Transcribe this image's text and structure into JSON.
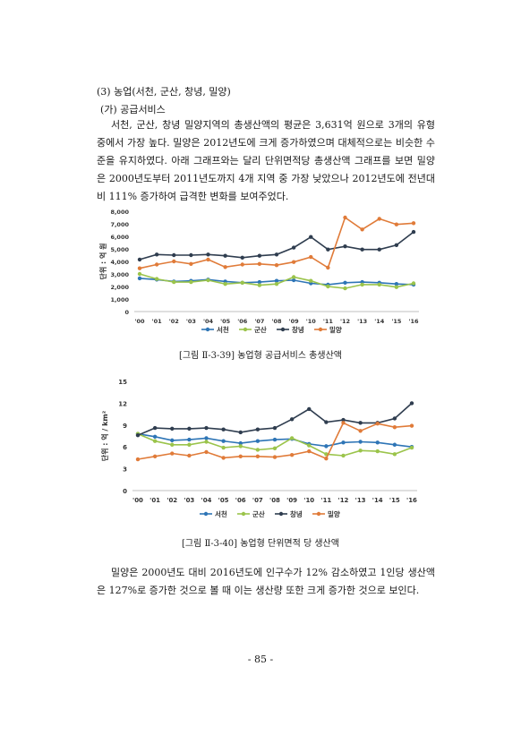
{
  "section": {
    "heading": "(3) 농업(서천, 군산, 창녕, 밀양)",
    "subheading": "(가) 공급서비스"
  },
  "paragraph1": "서천, 군산, 창녕 밀양지역의 총생산액의 평균은 3,631억 원으로 3개의 유형 중에서 가장 높다. 밀양은 2012년도에 크게 증가하였으며 대체적으로는 비슷한 수준을 유지하였다. 아래 그래프와는 달리 단위면적당 총생산액 그래프를 보면 밀양은 2000년도부터 2011년도까지 4개 지역 중 가장 낮았으나 2012년도에 전년대비 111% 증가하여 급격한 변화를 보여주었다.",
  "paragraph2": "밀양은 2000년도 대비 2016년도에 인구수가 12% 감소하였고 1인당 생산액은 127%로 증가한 것으로 볼 때 이는 생산량 또한 크게 증가한 것으로 보인다.",
  "captions": {
    "fig1": "[그림 Ⅱ-3-39] 농업형 공급서비스 총생산액",
    "fig2": "[그림 Ⅱ-3-40] 농업형 단위면적 당 생산액"
  },
  "page_number": "- 85 -",
  "chart_data": [
    {
      "type": "line",
      "title": "",
      "xlabel": "",
      "ylabel": "단위 : 억 원",
      "x": [
        "'00",
        "'01",
        "'02",
        "'03",
        "'04",
        "'05",
        "'06",
        "'07",
        "'08",
        "'09",
        "'10",
        "'11",
        "'12",
        "'13",
        "'14",
        "'15",
        "'16"
      ],
      "ylim": [
        0,
        8000
      ],
      "yticks": [
        "0",
        "1,000",
        "2,000",
        "3,000",
        "4,000",
        "5,000",
        "6,000",
        "7,000",
        "8,000"
      ],
      "grid": false,
      "legend": "bottom",
      "series": [
        {
          "name": "서천",
          "color": "#2e75b6",
          "values": [
            2650,
            2550,
            2400,
            2450,
            2550,
            2400,
            2300,
            2350,
            2450,
            2500,
            2250,
            2150,
            2300,
            2350,
            2300,
            2200,
            2150
          ]
        },
        {
          "name": "군산",
          "color": "#9bc44b",
          "values": [
            3000,
            2600,
            2350,
            2350,
            2500,
            2200,
            2300,
            2100,
            2200,
            2750,
            2450,
            2000,
            1850,
            2150,
            2150,
            1950,
            2250
          ]
        },
        {
          "name": "창녕",
          "color": "#2f3d4f",
          "values": [
            4150,
            4550,
            4500,
            4500,
            4550,
            4450,
            4300,
            4450,
            4550,
            5100,
            5950,
            4950,
            5200,
            4950,
            4950,
            5300,
            6350
          ]
        },
        {
          "name": "밀양",
          "color": "#e07b39",
          "values": [
            3450,
            3750,
            4000,
            3800,
            4150,
            3550,
            3750,
            3800,
            3700,
            3950,
            4350,
            3500,
            7500,
            6550,
            7400,
            6950,
            7050
          ]
        }
      ]
    },
    {
      "type": "line",
      "title": "",
      "xlabel": "",
      "ylabel": "단위 : 억 / km²",
      "x": [
        "'00",
        "'01",
        "'02",
        "'03",
        "'04",
        "'05",
        "'06",
        "'07",
        "'08",
        "'09",
        "'10",
        "'11",
        "'12",
        "'13",
        "'14",
        "'15",
        "'16"
      ],
      "ylim": [
        0,
        15
      ],
      "yticks": [
        "0",
        "3",
        "6",
        "9",
        "12",
        "15"
      ],
      "grid": false,
      "legend": "bottom",
      "series": [
        {
          "name": "서천",
          "color": "#2e75b6",
          "values": [
            7.8,
            7.4,
            6.9,
            7.0,
            7.2,
            6.8,
            6.5,
            6.8,
            7.0,
            7.1,
            6.4,
            6.1,
            6.6,
            6.7,
            6.6,
            6.3,
            6.0
          ]
        },
        {
          "name": "군산",
          "color": "#9bc44b",
          "values": [
            7.8,
            6.8,
            6.3,
            6.3,
            6.7,
            5.9,
            6.1,
            5.6,
            5.8,
            7.2,
            6.2,
            5.0,
            4.8,
            5.5,
            5.4,
            5.0,
            5.9
          ]
        },
        {
          "name": "창녕",
          "color": "#2f3d4f",
          "values": [
            7.6,
            8.6,
            8.5,
            8.5,
            8.6,
            8.4,
            8.0,
            8.4,
            8.6,
            9.8,
            11.2,
            9.4,
            9.7,
            9.3,
            9.3,
            9.9,
            12.0
          ]
        },
        {
          "name": "밀양",
          "color": "#e07b39",
          "values": [
            4.3,
            4.7,
            5.1,
            4.8,
            5.3,
            4.5,
            4.7,
            4.7,
            4.6,
            4.9,
            5.4,
            4.4,
            9.3,
            8.2,
            9.2,
            8.7,
            8.9
          ]
        }
      ]
    }
  ]
}
